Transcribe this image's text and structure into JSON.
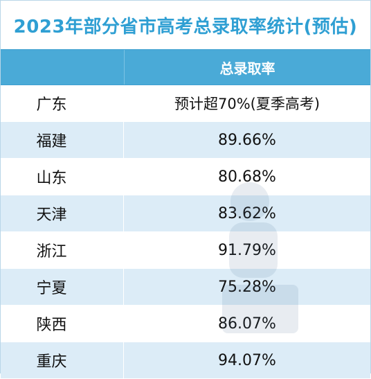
{
  "title": "2023年部分省市高考总录取率统计(预估)",
  "header": {
    "province": "",
    "rate": "总录取率"
  },
  "rows": [
    {
      "province": "广东",
      "rate": "预计超70%(夏季高考)"
    },
    {
      "province": "福建",
      "rate": "89.66%"
    },
    {
      "province": "山东",
      "rate": "80.68%"
    },
    {
      "province": "天津",
      "rate": "83.62%"
    },
    {
      "province": "浙江",
      "rate": "91.79%"
    },
    {
      "province": "宁夏",
      "rate": "75.28%"
    },
    {
      "province": "陕西",
      "rate": "86.07%"
    },
    {
      "province": "重庆",
      "rate": "94.07%"
    }
  ],
  "colors": {
    "title": "#2f9fd3",
    "header_bg": "#4aaad7",
    "stripe": "#dcecf7"
  }
}
